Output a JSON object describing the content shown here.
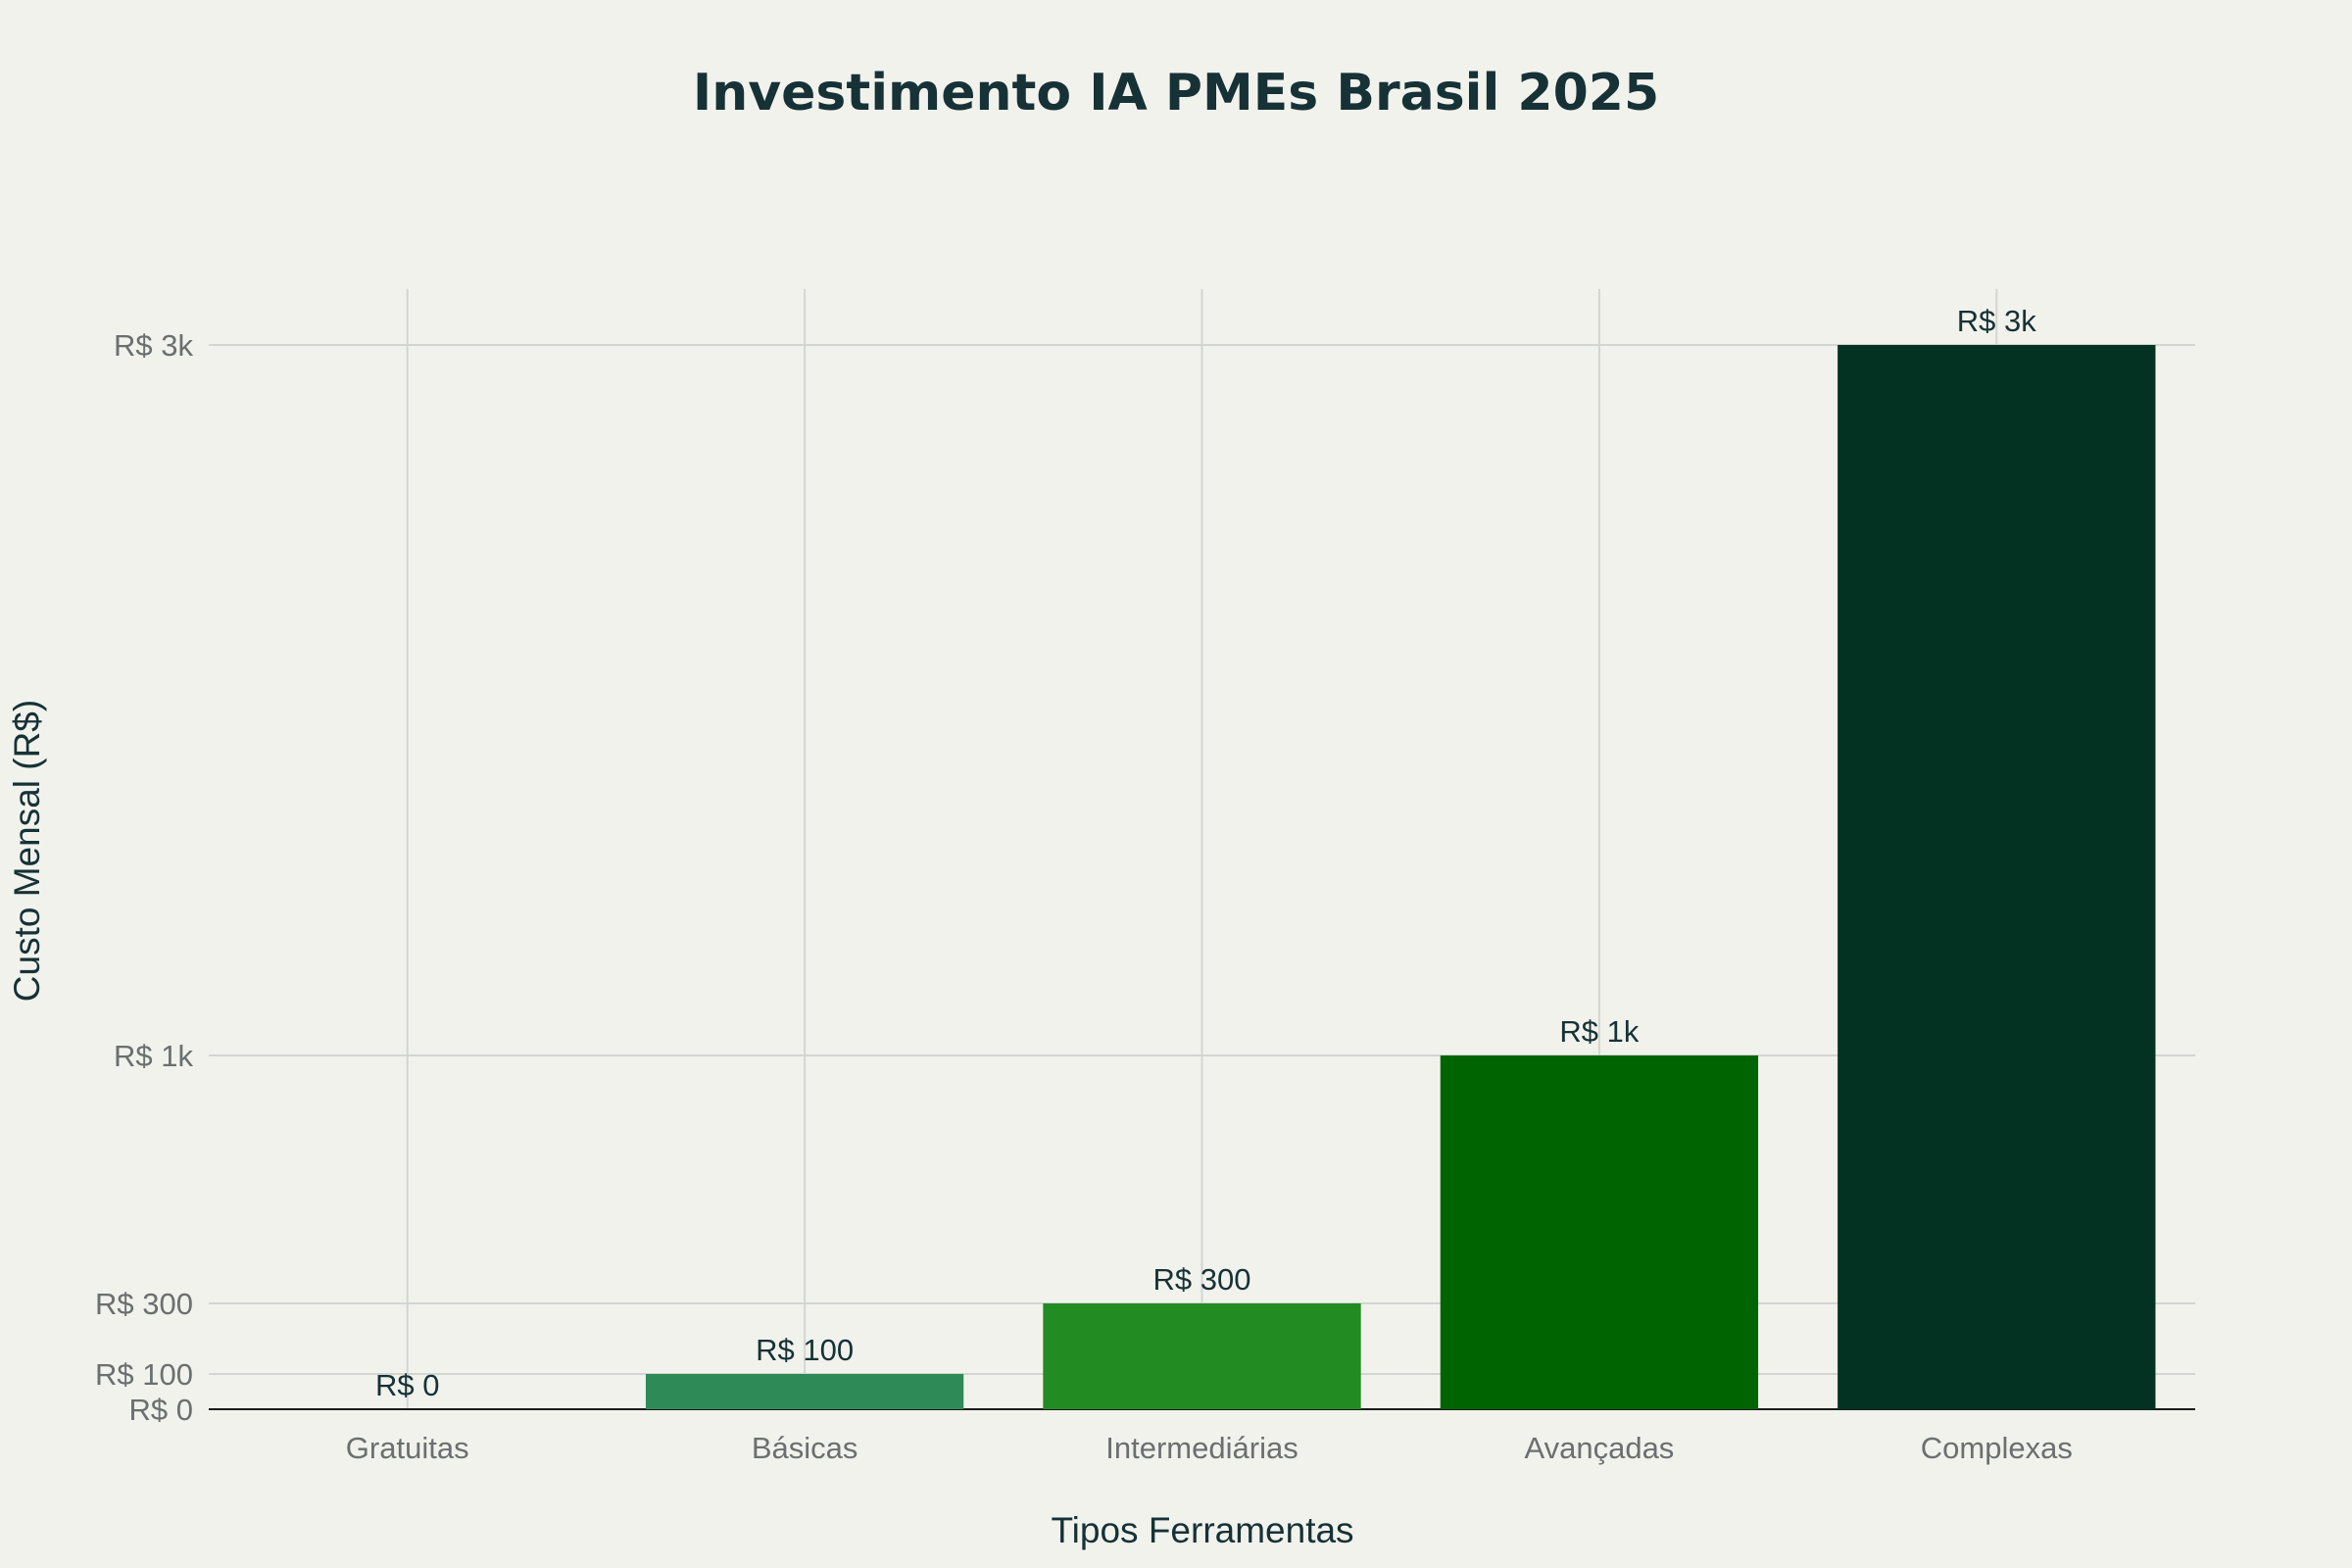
{
  "chart_data": {
    "type": "bar",
    "title": "Investimento IA PMEs Brasil 2025",
    "xlabel": "Tipos Ferramentas",
    "ylabel": "Custo Mensal (R$)",
    "categories": [
      "Gratuitas",
      "Básicas",
      "Intermediárias",
      "Avançadas",
      "Complexas"
    ],
    "values": [
      0,
      100,
      300,
      1000,
      3000
    ],
    "data_labels": [
      "R$ 0",
      "R$ 100",
      "R$ 300",
      "R$ 1k",
      "R$ 3k"
    ],
    "bar_colors": [
      "#f2f2ed",
      "#2e8b57",
      "#228b22",
      "#006400",
      "#033222"
    ],
    "yticks": [
      {
        "value": 0,
        "label": "R$ 0"
      },
      {
        "value": 100,
        "label": "R$ 100"
      },
      {
        "value": 300,
        "label": "R$ 300"
      },
      {
        "value": 1000,
        "label": "R$ 1k"
      },
      {
        "value": 3000,
        "label": "R$ 3k"
      }
    ],
    "ylim": [
      0,
      3160
    ],
    "grid": true,
    "legend": "none"
  }
}
